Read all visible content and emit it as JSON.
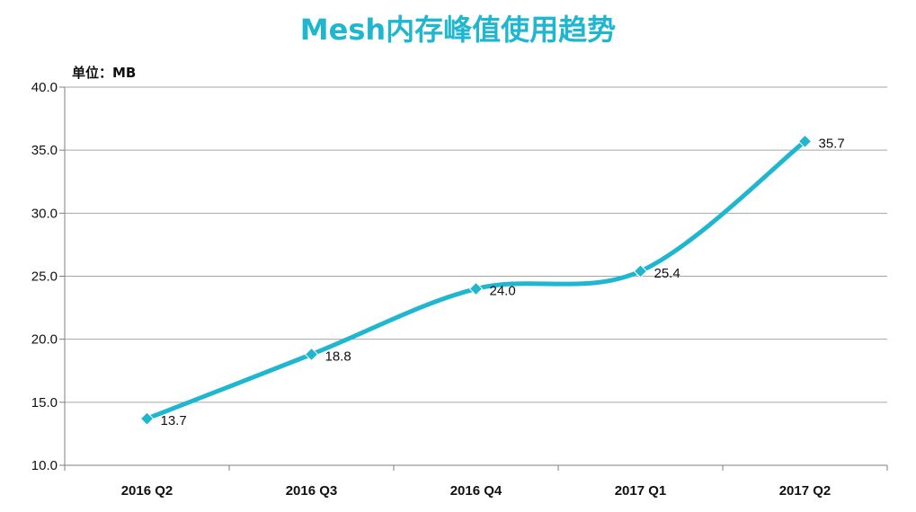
{
  "chart_data": {
    "type": "line",
    "title": "Mesh内存峰值使用趋势",
    "unit_label": "单位：MB",
    "categories": [
      "2016 Q2",
      "2016 Q3",
      "2016 Q4",
      "2017 Q1",
      "2017 Q2"
    ],
    "series": [
      {
        "values": [
          13.7,
          18.8,
          24.0,
          25.4,
          35.7
        ],
        "color": "#1fb6cf"
      }
    ],
    "data_labels": [
      "13.7",
      "18.8",
      "24.0",
      "25.4",
      "35.7"
    ],
    "ylim": [
      10,
      40
    ],
    "yticks": [
      10,
      15,
      20,
      25,
      30,
      35,
      40
    ],
    "ytick_labels": [
      "10.0",
      "15.0",
      "20.0",
      "25.0",
      "30.0",
      "35.0",
      "40.0"
    ],
    "grid": true,
    "smooth": true,
    "legend": "none"
  }
}
